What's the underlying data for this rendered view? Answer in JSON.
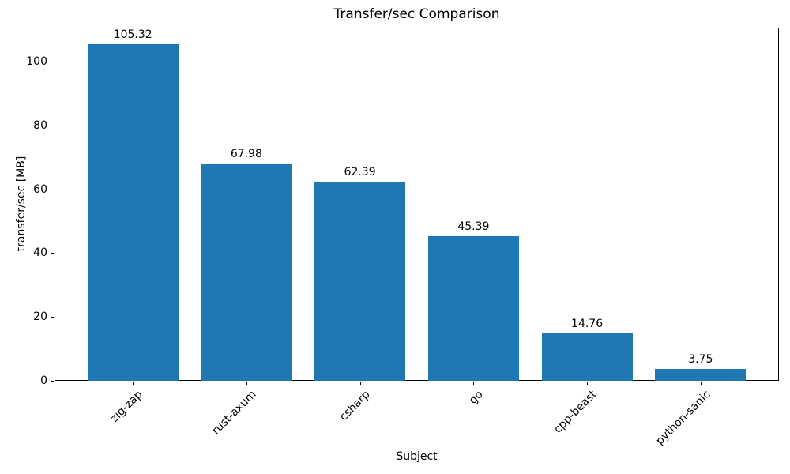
{
  "chart_data": {
    "type": "bar",
    "title": "Transfer/sec Comparison",
    "xlabel": "Subject",
    "ylabel": "transfer/sec [MB]",
    "categories": [
      "zig-zap",
      "rust-axum",
      "csharp",
      "go",
      "cpp-beast",
      "python-sanic"
    ],
    "values": [
      105.32,
      67.98,
      62.39,
      45.39,
      14.76,
      3.75
    ],
    "bar_labels": [
      "105.32",
      "67.98",
      "62.39",
      "45.39",
      "14.76",
      "3.75"
    ],
    "bar_color": "#1f77b4",
    "ylim": [
      0,
      110.59
    ],
    "yticks": [
      0,
      20,
      40,
      60,
      80,
      100
    ],
    "grid": false,
    "legend_position": "none",
    "x_tick_rotation": 45
  }
}
